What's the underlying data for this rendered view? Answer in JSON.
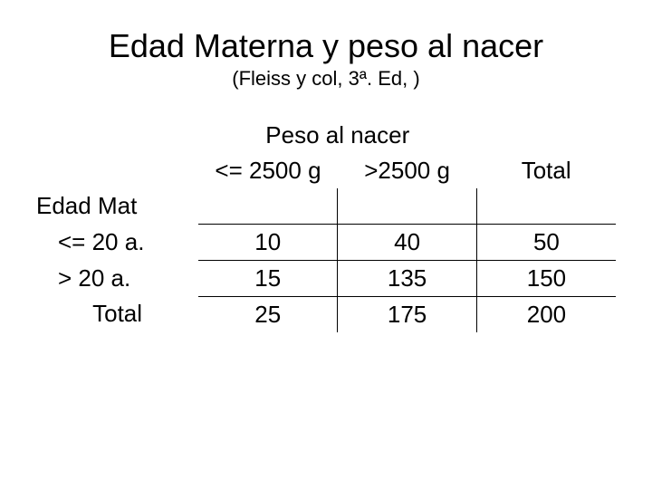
{
  "title": "Edad Materna y peso al nacer",
  "subtitle": "(Fleiss y col, 3ª. Ed, )",
  "table": {
    "span_header": "Peso al nacer",
    "col_headers": [
      "<= 2500 g",
      ">2500 g",
      "Total"
    ],
    "row_header": "Edad Mat",
    "rows": [
      {
        "label": "<= 20 a.",
        "values": [
          "10",
          "40",
          "50"
        ]
      },
      {
        "label": "> 20 a.",
        "values": [
          "15",
          "135",
          "150"
        ]
      }
    ],
    "total_row": {
      "label": "Total",
      "values": [
        "25",
        "175",
        "200"
      ]
    }
  },
  "style": {
    "background_color": "#ffffff",
    "text_color": "#000000",
    "border_color": "#000000",
    "title_fontsize": 36,
    "subtitle_fontsize": 22,
    "body_fontsize": 26,
    "font_family": "Arial"
  }
}
